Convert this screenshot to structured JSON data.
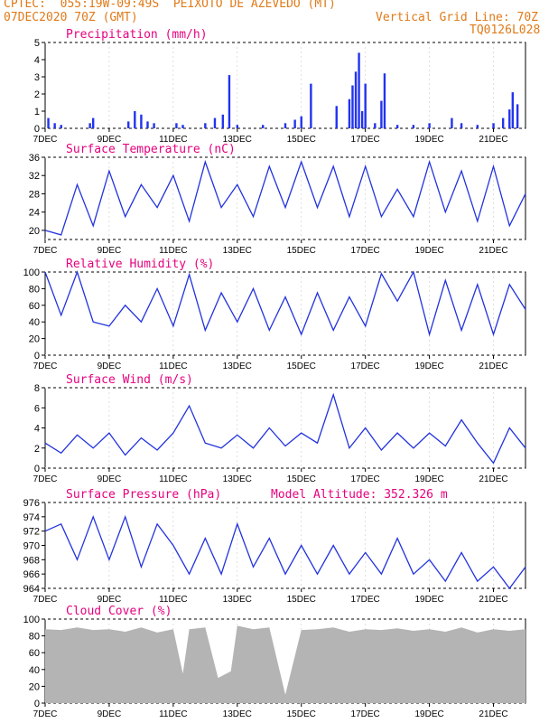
{
  "header": {
    "line1": "CPTEC:  055:19W-09:49S  PEIXOTO DE AZEVEDO (MT)",
    "line2": "07DEC2020 70Z (GMT)",
    "grid_note": "Vertical Grid Line: 70Z",
    "code": "TQ0126L028"
  },
  "colors": {
    "header": "#e07a18",
    "title": "#e6007e",
    "line": "#2233dd",
    "bar": "#2233ee",
    "cloud": "#b4b4b4",
    "frame": "#000000"
  },
  "x_axis": {
    "ticks": [
      7,
      9,
      11,
      13,
      15,
      17,
      19,
      21
    ],
    "tick_labels": [
      "7DEC",
      "9DEC",
      "11DEC",
      "13DEC",
      "15DEC",
      "17DEC",
      "19DEC",
      "21DEC"
    ],
    "range_days": [
      7,
      22
    ]
  },
  "panels_meta": {
    "precip": {
      "title": "Precipitation (mm/h)"
    },
    "temp": {
      "title": "Surface Temperature (nC)"
    },
    "rh": {
      "title": "Relative Humidity (%)"
    },
    "wind": {
      "title": "Surface Wind (m/s)"
    },
    "pres": {
      "title": "Surface Pressure (hPa)",
      "note": "Model Altitude: 352.326 m"
    },
    "cloud": {
      "title": "Cloud Cover (%)"
    }
  },
  "chart_data": [
    {
      "type": "bar",
      "title": "Precipitation (mm/h)",
      "ylim": [
        0,
        5
      ],
      "yticks": [
        0,
        1,
        2,
        3,
        4,
        5
      ],
      "series": [
        {
          "x": [
            7.1,
            7.3,
            7.5,
            8.4,
            8.5,
            9.6,
            9.8,
            10.0,
            10.2,
            10.4,
            11.1,
            11.3,
            12.0,
            12.3,
            12.55,
            12.75,
            13.0,
            13.8,
            14.5,
            14.8,
            15.0,
            15.3,
            16.1,
            16.5,
            16.6,
            16.7,
            16.8,
            16.9,
            17.0,
            17.3,
            17.5,
            17.6,
            18.0,
            18.5,
            19.0,
            19.7,
            20.0,
            20.5,
            21.0,
            21.3,
            21.5,
            21.6,
            21.75
          ],
          "values": [
            0.6,
            0.3,
            0.2,
            0.3,
            0.6,
            0.4,
            1.0,
            0.8,
            0.4,
            0.3,
            0.3,
            0.2,
            0.3,
            0.6,
            0.8,
            3.1,
            0.2,
            0.2,
            0.3,
            0.5,
            0.7,
            2.6,
            1.3,
            1.7,
            2.5,
            3.3,
            4.4,
            1.0,
            2.6,
            0.3,
            1.6,
            3.2,
            0.2,
            0.2,
            0.3,
            0.6,
            0.3,
            0.2,
            0.3,
            0.6,
            1.1,
            2.1,
            1.4
          ]
        }
      ]
    },
    {
      "type": "line",
      "title": "Surface Temperature (nC)",
      "ylim": [
        18,
        36
      ],
      "yticks": [
        20,
        24,
        28,
        32,
        36
      ],
      "series": [
        {
          "x": [
            7,
            7.5,
            8.0,
            8.5,
            9.0,
            9.5,
            10.0,
            10.5,
            11.0,
            11.5,
            12.0,
            12.5,
            13.0,
            13.5,
            14.0,
            14.5,
            15.0,
            15.5,
            16.0,
            16.5,
            17.0,
            17.5,
            18.0,
            18.5,
            19.0,
            19.5,
            20.0,
            20.5,
            21.0,
            21.5,
            22.0
          ],
          "values": [
            20,
            19,
            30,
            21,
            33,
            23,
            30,
            25,
            32,
            22,
            35,
            25,
            30,
            23,
            34,
            25,
            35,
            25,
            34,
            23,
            34,
            23,
            29,
            23,
            35,
            24,
            33,
            22,
            34,
            21,
            28
          ]
        }
      ]
    },
    {
      "type": "line",
      "title": "Relative Humidity (%)",
      "ylim": [
        0,
        100
      ],
      "yticks": [
        0,
        20,
        40,
        60,
        80,
        100
      ],
      "series": [
        {
          "x": [
            7,
            7.5,
            8.0,
            8.5,
            9.0,
            9.5,
            10.0,
            10.5,
            11.0,
            11.5,
            12.0,
            12.5,
            13.0,
            13.5,
            14.0,
            14.5,
            15.0,
            15.5,
            16.0,
            16.5,
            17.0,
            17.5,
            18.0,
            18.5,
            19.0,
            19.5,
            20.0,
            20.5,
            21.0,
            21.5,
            22.0
          ],
          "values": [
            100,
            48,
            100,
            40,
            35,
            60,
            40,
            80,
            35,
            97,
            30,
            75,
            40,
            80,
            30,
            70,
            25,
            75,
            30,
            70,
            35,
            98,
            65,
            100,
            25,
            90,
            30,
            85,
            25,
            85,
            55
          ]
        }
      ]
    },
    {
      "type": "line",
      "title": "Surface Wind (m/s)",
      "ylim": [
        0,
        8
      ],
      "yticks": [
        0,
        2,
        4,
        6,
        8
      ],
      "series": [
        {
          "x": [
            7,
            7.5,
            8.0,
            8.5,
            9.0,
            9.5,
            10.0,
            10.5,
            11.0,
            11.5,
            12.0,
            12.5,
            13.0,
            13.5,
            14.0,
            14.5,
            15.0,
            15.5,
            16.0,
            16.5,
            17.0,
            17.5,
            18.0,
            18.5,
            19.0,
            19.5,
            20.0,
            20.5,
            21.0,
            21.5,
            22.0
          ],
          "values": [
            2.5,
            1.5,
            3.3,
            2.0,
            3.5,
            1.3,
            3.0,
            1.8,
            3.5,
            6.2,
            2.5,
            2.0,
            3.3,
            2.0,
            4.0,
            2.2,
            3.5,
            2.5,
            7.3,
            2.0,
            4.0,
            1.8,
            3.5,
            2.0,
            3.5,
            2.2,
            4.8,
            2.5,
            0.5,
            4.0,
            2.0
          ]
        }
      ]
    },
    {
      "type": "line",
      "title": "Surface Pressure (hPa)",
      "ylim": [
        964,
        976
      ],
      "yticks": [
        964,
        966,
        968,
        970,
        972,
        974,
        976
      ],
      "series": [
        {
          "x": [
            7,
            7.5,
            8.0,
            8.5,
            9.0,
            9.5,
            10.0,
            10.5,
            11.0,
            11.5,
            12.0,
            12.5,
            13.0,
            13.5,
            14.0,
            14.5,
            15.0,
            15.5,
            16.0,
            16.5,
            17.0,
            17.5,
            18.0,
            18.5,
            19.0,
            19.5,
            20.0,
            20.5,
            21.0,
            21.5,
            22.0
          ],
          "values": [
            972,
            973,
            968,
            974,
            968,
            974,
            967,
            973,
            970,
            966,
            971,
            966,
            973,
            967,
            971,
            966,
            970,
            966,
            970,
            966,
            969,
            966,
            971,
            966,
            968,
            965,
            969,
            965,
            967,
            964,
            967
          ]
        }
      ]
    },
    {
      "type": "area",
      "title": "Cloud Cover (%)",
      "ylim": [
        0,
        100
      ],
      "yticks": [
        0,
        20,
        40,
        60,
        80,
        100
      ],
      "series": [
        {
          "x": [
            7,
            7.5,
            8.0,
            8.5,
            9.0,
            9.5,
            10.0,
            10.5,
            11.0,
            11.3,
            11.5,
            12.0,
            12.4,
            12.8,
            13.0,
            13.5,
            14.0,
            14.5,
            15.0,
            15.5,
            16.0,
            16.5,
            17.0,
            17.5,
            18.0,
            18.5,
            19.0,
            19.5,
            20.0,
            20.5,
            21.0,
            21.5,
            22.0
          ],
          "values": [
            88,
            87,
            90,
            87,
            88,
            85,
            90,
            84,
            88,
            35,
            88,
            90,
            30,
            38,
            92,
            88,
            90,
            10,
            87,
            88,
            90,
            85,
            88,
            87,
            89,
            86,
            88,
            85,
            90,
            84,
            88,
            86,
            88
          ]
        }
      ]
    }
  ]
}
